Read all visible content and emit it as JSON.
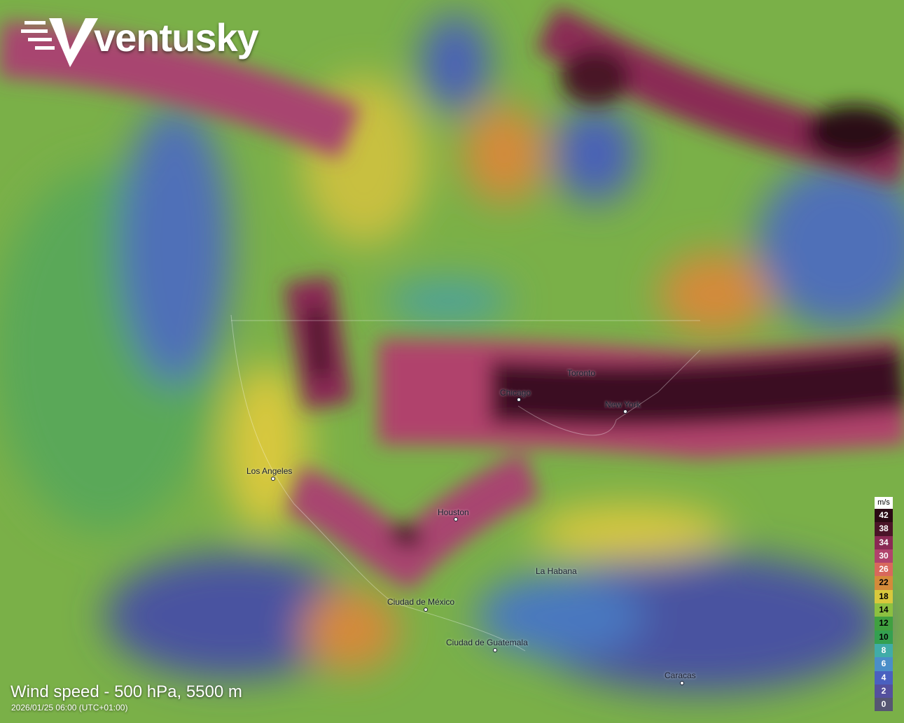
{
  "brand": {
    "name": "ventusky"
  },
  "layer": {
    "title": "Wind speed - 500 hPa, 5500 m",
    "datetime": "2026/01/25 06:00 (UTC+01:00)"
  },
  "cities": [
    {
      "name": "Toronto"
    },
    {
      "name": "Chicago"
    },
    {
      "name": "New York"
    },
    {
      "name": "Los Angeles"
    },
    {
      "name": "Houston"
    },
    {
      "name": "La Habana"
    },
    {
      "name": "Ciudad de México"
    },
    {
      "name": "Ciudad de  Guatemala"
    },
    {
      "name": "Caracas"
    }
  ],
  "legend": {
    "unit": "m/s",
    "items": [
      {
        "value": "42",
        "color": "#2a0a14",
        "text": "#ffffff"
      },
      {
        "value": "38",
        "color": "#4a1428",
        "text": "#ffffff"
      },
      {
        "value": "34",
        "color": "#8a2a54",
        "text": "#ffffff"
      },
      {
        "value": "30",
        "color": "#b0426c",
        "text": "#ffffff"
      },
      {
        "value": "26",
        "color": "#d8685c",
        "text": "#ffffff"
      },
      {
        "value": "22",
        "color": "#d48a3a",
        "text": "#000000"
      },
      {
        "value": "18",
        "color": "#d8c83c",
        "text": "#000000"
      },
      {
        "value": "14",
        "color": "#8cc040",
        "text": "#000000"
      },
      {
        "value": "12",
        "color": "#40a040",
        "text": "#000000"
      },
      {
        "value": "10",
        "color": "#34a050",
        "text": "#000000"
      },
      {
        "value": "8",
        "color": "#40aca8",
        "text": "#ffffff"
      },
      {
        "value": "6",
        "color": "#4a8ec8",
        "text": "#ffffff"
      },
      {
        "value": "4",
        "color": "#4a60c0",
        "text": "#ffffff"
      },
      {
        "value": "2",
        "color": "#54509e",
        "text": "#ffffff"
      },
      {
        "value": "0",
        "color": "#565672",
        "text": "#ffffff"
      }
    ]
  }
}
